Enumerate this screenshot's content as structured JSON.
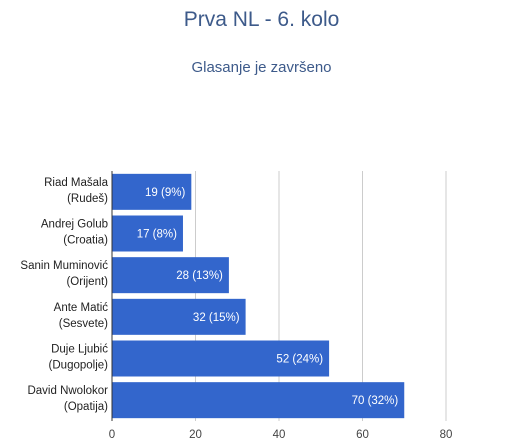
{
  "title": "Prva NL - 6. kolo",
  "subtitle": "Glasanje je završeno",
  "colors": {
    "bar": "#3366cc",
    "grid": "#cccccc",
    "axis": "#333333",
    "title": "#3d5a8a"
  },
  "chart_data": {
    "type": "bar",
    "orientation": "horizontal",
    "categories": [
      [
        "Riad Mašala",
        "(Rudeš)"
      ],
      [
        "Andrej Golub",
        "(Croatia)"
      ],
      [
        "Sanin Muminović",
        "(Orijent)"
      ],
      [
        "Ante Matić",
        "(Sesvete)"
      ],
      [
        "Duje Ljubić",
        "(Dugopolje)"
      ],
      [
        "David Nwolokor",
        "(Opatija)"
      ]
    ],
    "values": [
      19,
      17,
      28,
      32,
      52,
      70
    ],
    "data_labels": [
      "19 (9%)",
      "17 (8%)",
      "28 (13%)",
      "32 (15%)",
      "52 (24%)",
      "70 (32%)"
    ],
    "xlim": [
      0,
      80
    ],
    "xticks": [
      0,
      20,
      40,
      60,
      80
    ],
    "grid": true
  }
}
